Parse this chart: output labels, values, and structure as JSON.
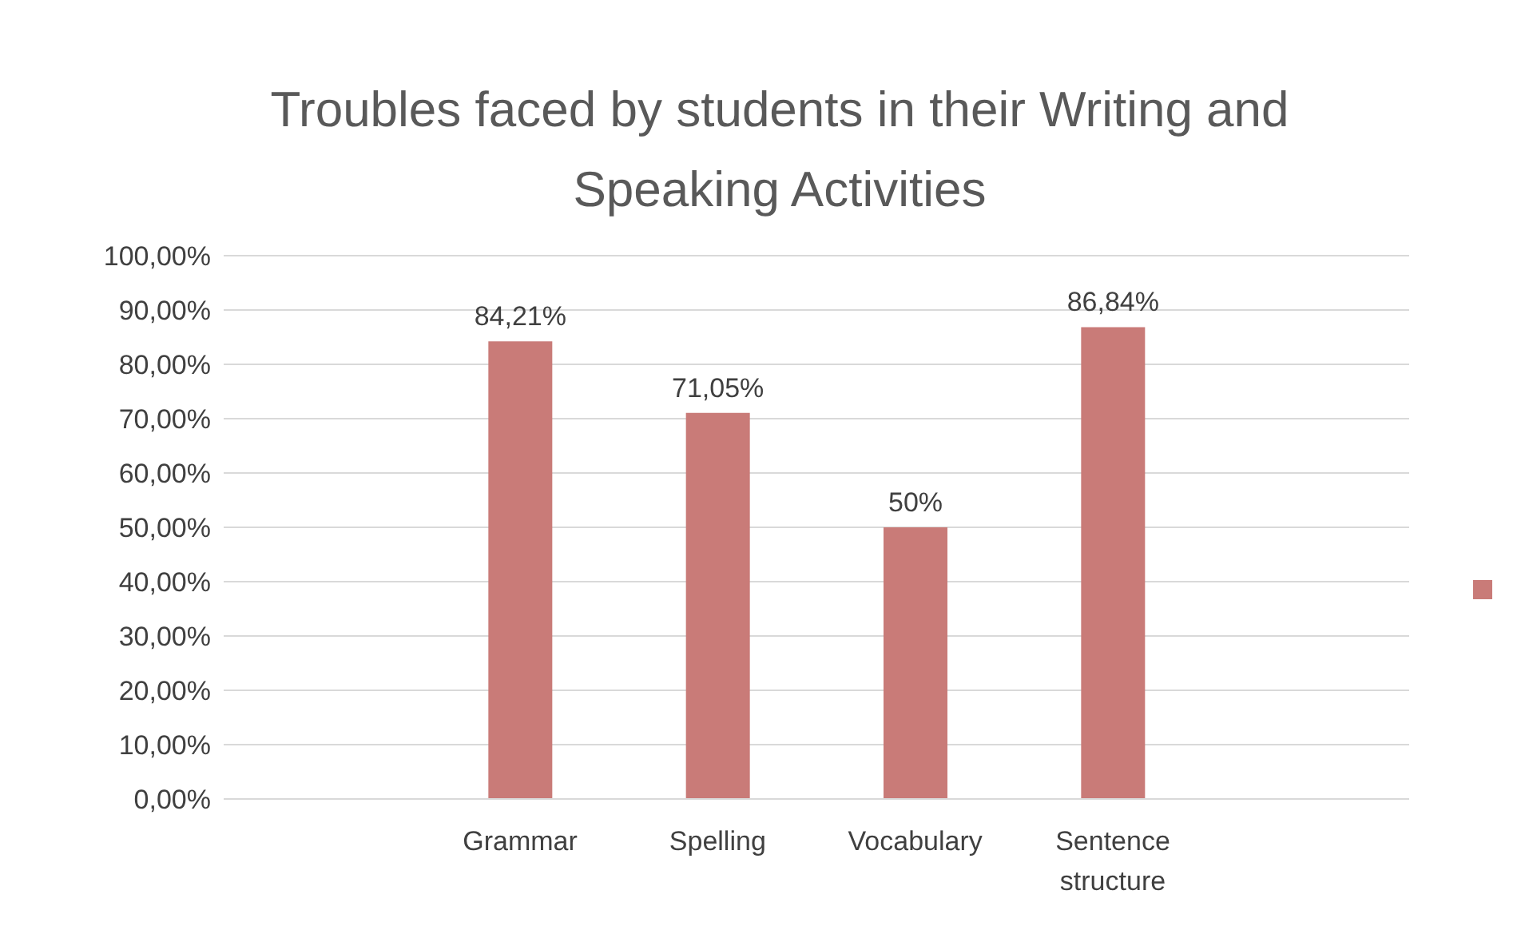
{
  "chart_data": {
    "type": "bar",
    "title": "Troubles faced by students in their Writing and Speaking Activities",
    "categories": [
      null,
      "Grammar",
      "Spelling",
      "Vocabulary",
      "Sentence structure",
      null
    ],
    "series": [
      {
        "color": "#c97b78",
        "values": [
          null,
          84.21,
          71.05,
          50,
          86.84,
          null
        ],
        "value_labels": [
          null,
          "84,21%",
          "71,05%",
          "50%",
          "86,84%",
          null
        ]
      }
    ],
    "ylim": [
      0,
      100
    ],
    "yticks": [
      {
        "value": 0,
        "label": "0,00%"
      },
      {
        "value": 10,
        "label": "10,00%"
      },
      {
        "value": 20,
        "label": "20,00%"
      },
      {
        "value": 30,
        "label": "30,00%"
      },
      {
        "value": 40,
        "label": "40,00%"
      },
      {
        "value": 50,
        "label": "50,00%"
      },
      {
        "value": 60,
        "label": "60,00%"
      },
      {
        "value": 70,
        "label": "70,00%"
      },
      {
        "value": 80,
        "label": "80,00%"
      },
      {
        "value": 90,
        "label": "90,00%"
      },
      {
        "value": 100,
        "label": "100,00%"
      }
    ],
    "grid": "y"
  }
}
